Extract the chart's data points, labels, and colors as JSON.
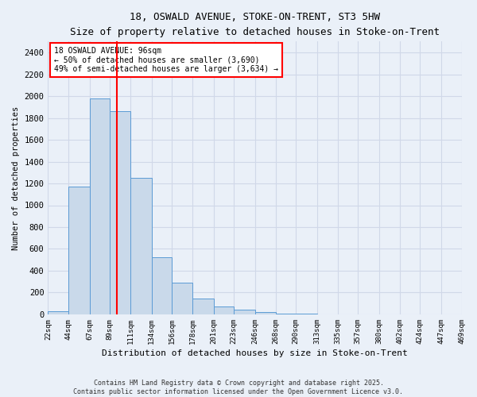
{
  "title1": "18, OSWALD AVENUE, STOKE-ON-TRENT, ST3 5HW",
  "title2": "Size of property relative to detached houses in Stoke-on-Trent",
  "xlabel": "Distribution of detached houses by size in Stoke-on-Trent",
  "ylabel": "Number of detached properties",
  "bar_values": [
    30,
    1170,
    1980,
    1860,
    1250,
    520,
    290,
    145,
    70,
    40,
    20,
    10,
    5,
    3,
    2,
    1,
    0,
    0,
    0,
    0
  ],
  "bin_edges": [
    22,
    44,
    67,
    89,
    111,
    134,
    156,
    178,
    201,
    223,
    246,
    268,
    290,
    313,
    335,
    357,
    380,
    402,
    424,
    447,
    469
  ],
  "tick_labels": [
    "22sqm",
    "44sqm",
    "67sqm",
    "89sqm",
    "111sqm",
    "134sqm",
    "156sqm",
    "178sqm",
    "201sqm",
    "223sqm",
    "246sqm",
    "268sqm",
    "290sqm",
    "313sqm",
    "335sqm",
    "357sqm",
    "380sqm",
    "402sqm",
    "424sqm",
    "447sqm",
    "469sqm"
  ],
  "bar_color": "#c9d9ea",
  "bar_edge_color": "#5b9bd5",
  "red_line_x": 96,
  "ylim": [
    0,
    2500
  ],
  "yticks": [
    0,
    200,
    400,
    600,
    800,
    1000,
    1200,
    1400,
    1600,
    1800,
    2000,
    2200,
    2400
  ],
  "annotation_title": "18 OSWALD AVENUE: 96sqm",
  "annotation_line1": "← 50% of detached houses are smaller (3,690)",
  "annotation_line2": "49% of semi-detached houses are larger (3,634) →",
  "footnote1": "Contains HM Land Registry data © Crown copyright and database right 2025.",
  "footnote2": "Contains public sector information licensed under the Open Government Licence v3.0.",
  "bg_color": "#eaf0f8",
  "plot_bg_color": "#eaf0f8",
  "grid_color": "#d0d8e8"
}
